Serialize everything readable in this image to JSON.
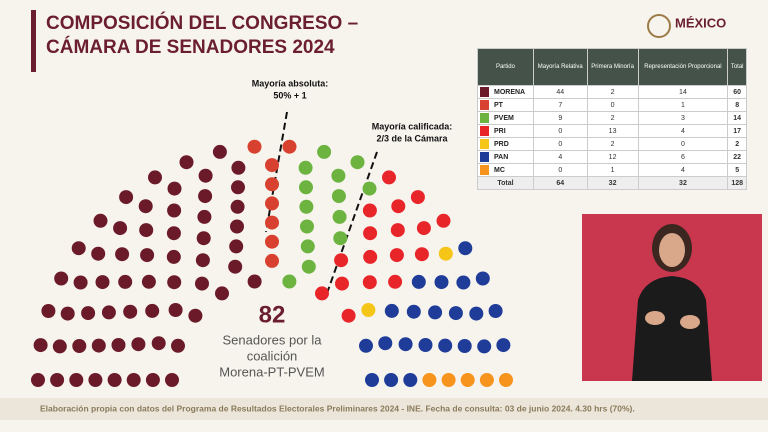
{
  "header": {
    "title_lines": [
      "COMPOSICIÓN DEL CONGRESO –",
      "CÁMARA DE SENADORES 2024"
    ],
    "logo": "MÉXICO"
  },
  "chart_data": {
    "type": "parliament",
    "seats": [
      60,
      8,
      14,
      17,
      2,
      22,
      5
    ],
    "colors": [
      "#6b1a2a",
      "#d8412f",
      "#6cb33f",
      "#e8262a",
      "#f5c518",
      "#1f3c99",
      "#f7941d"
    ],
    "annotations": [
      [
        "Mayoría absoluta:",
        "50% + 1"
      ],
      [
        "Mayoría calificada:",
        "2/3 de la Cámara"
      ]
    ],
    "highlight_number": 82,
    "highlight_lines": [
      "Senadores por la",
      "coalición",
      "Morena-PT-PVEM"
    ]
  },
  "table": {
    "header": [
      "Partido",
      "Mayoría Relativa",
      "Primera Minoría",
      "Representación Proporcional",
      "Total"
    ],
    "rows": [
      [
        "MORENA",
        44,
        2,
        14,
        60
      ],
      [
        "PT",
        7,
        0,
        1,
        8
      ],
      [
        "PVEM",
        9,
        2,
        3,
        14
      ],
      [
        "PRI",
        0,
        13,
        4,
        17
      ],
      [
        "PRD",
        0,
        2,
        0,
        2
      ],
      [
        "PAN",
        4,
        12,
        6,
        22
      ],
      [
        "MC",
        0,
        1,
        4,
        5
      ]
    ],
    "total_row": [
      "Total",
      64,
      32,
      32,
      128
    ]
  },
  "footer": "Elaboración propia con datos del Programa de Resultados Electorales Preliminares 2024 - INE. Fecha de consulta: 03 de junio 2024. 4.30 hrs (70%)."
}
